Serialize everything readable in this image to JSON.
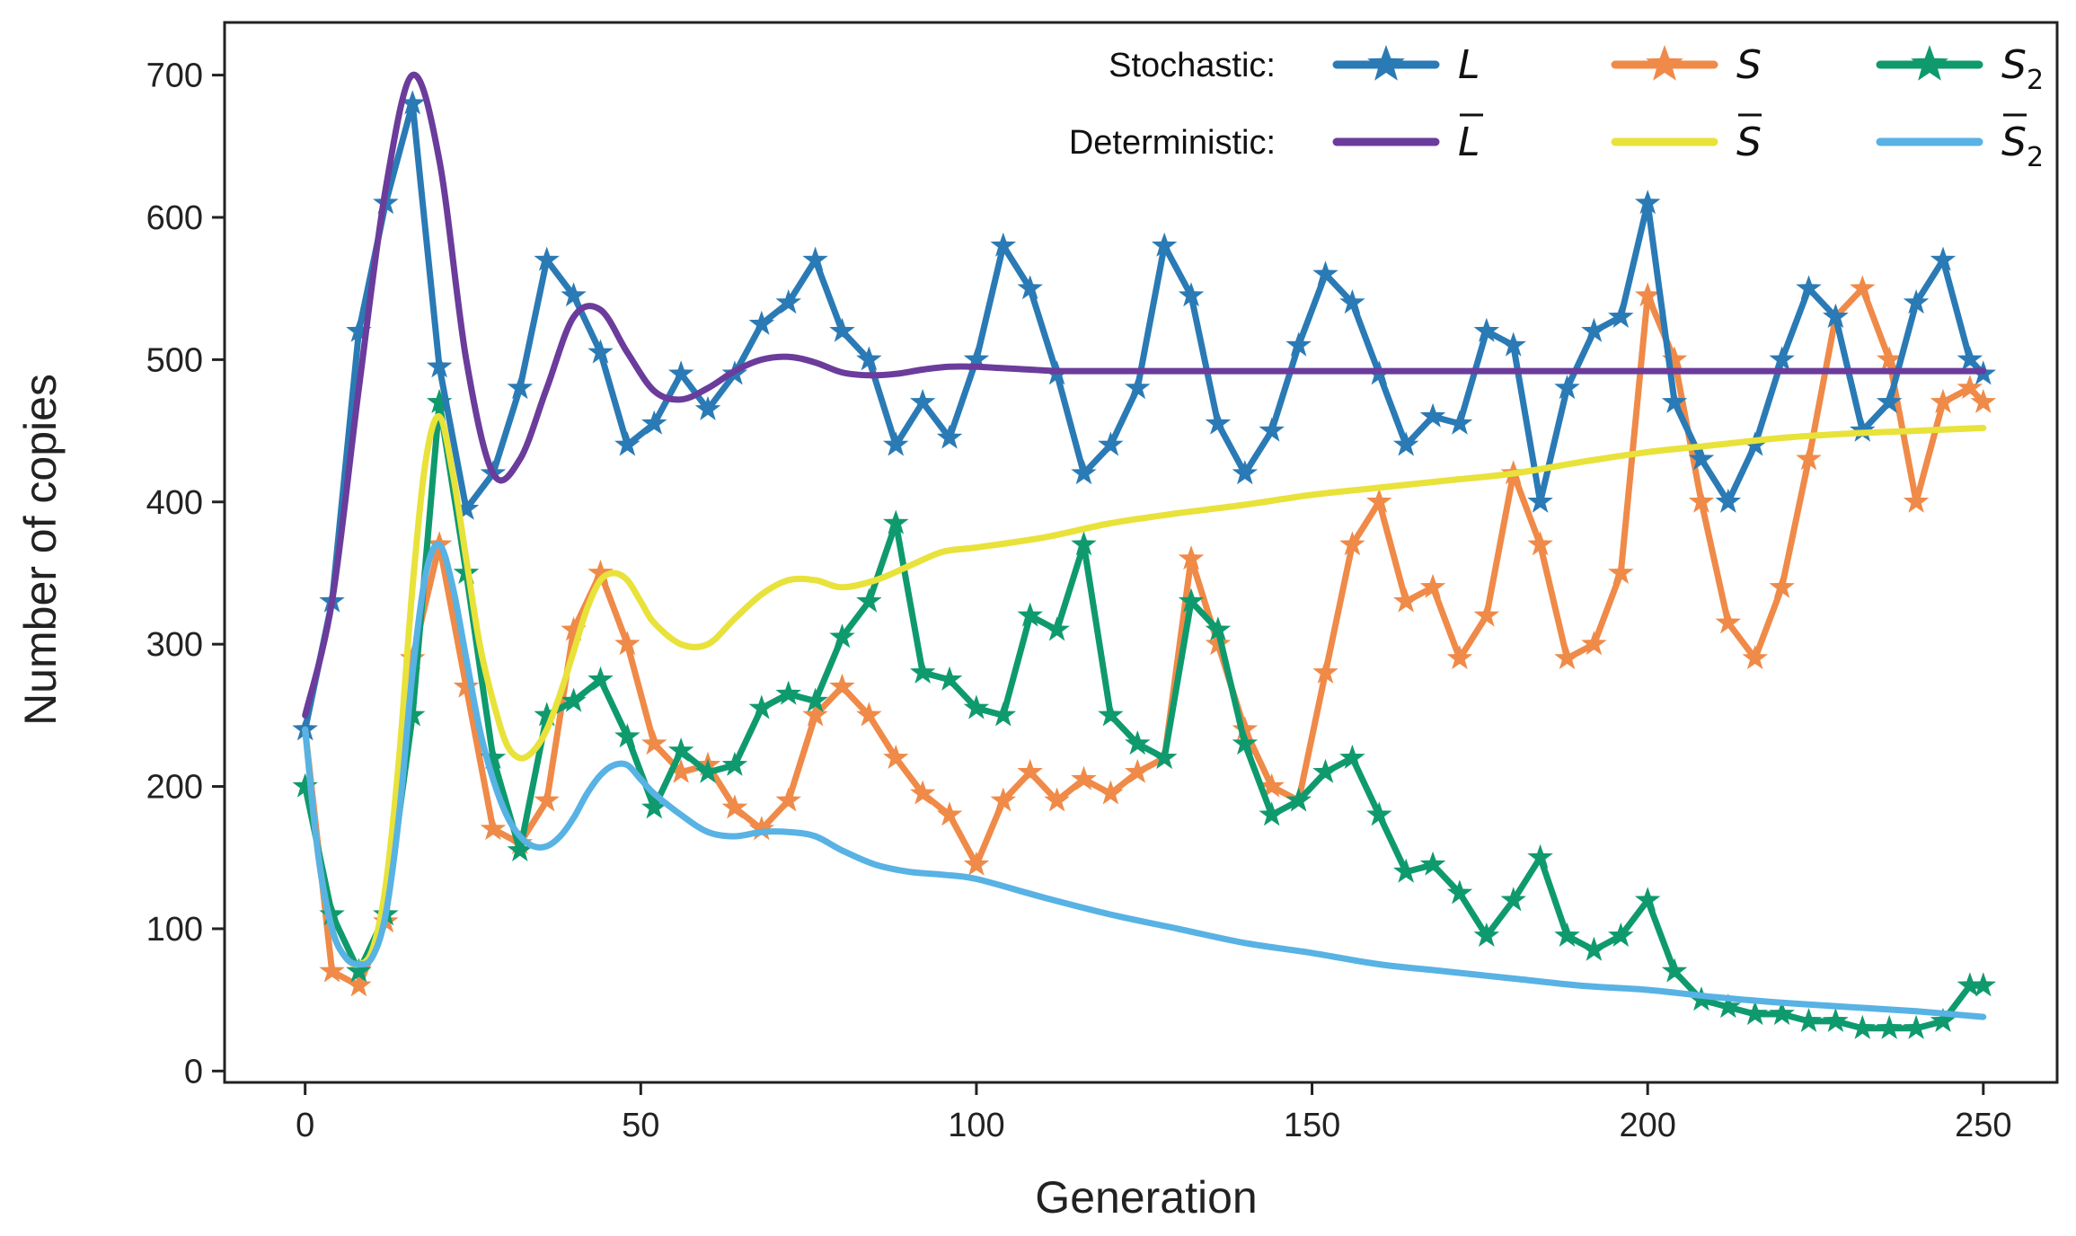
{
  "chart_data": {
    "type": "line",
    "title": "",
    "xlabel": "Generation",
    "ylabel": "Number of copies",
    "xlim": [
      -12,
      261
    ],
    "ylim": [
      -8,
      737
    ],
    "xticks": [
      0,
      50,
      100,
      150,
      200,
      250
    ],
    "yticks": [
      0,
      100,
      200,
      300,
      400,
      500,
      600,
      700
    ],
    "grid": false,
    "legend": {
      "placement": "top-right",
      "row_labels": [
        "Stochastic:",
        "Deterministic:"
      ],
      "entries": [
        {
          "series": "L",
          "label": "L",
          "sub": "",
          "overbar": false
        },
        {
          "series": "S",
          "label": "S",
          "sub": "",
          "overbar": false
        },
        {
          "series": "S2",
          "label": "S",
          "sub": "2",
          "overbar": false
        },
        {
          "series": "L_det",
          "label": "L",
          "sub": "",
          "overbar": true
        },
        {
          "series": "S_det",
          "label": "S",
          "sub": "",
          "overbar": true
        },
        {
          "series": "S2_det",
          "label": "S",
          "sub": "2",
          "overbar": true
        }
      ]
    },
    "series": [
      {
        "name": "L",
        "kind": "stochastic",
        "marker": "star",
        "color": "#2a7ab5",
        "x": [
          0,
          4,
          8,
          12,
          16,
          20,
          24,
          28,
          32,
          36,
          40,
          44,
          48,
          52,
          56,
          60,
          64,
          68,
          72,
          76,
          80,
          84,
          88,
          92,
          96,
          100,
          104,
          108,
          112,
          116,
          120,
          124,
          128,
          132,
          136,
          140,
          144,
          148,
          152,
          156,
          160,
          164,
          168,
          172,
          176,
          180,
          184,
          188,
          192,
          196,
          200,
          204,
          208,
          212,
          216,
          220,
          224,
          228,
          232,
          236,
          240,
          244,
          248,
          250
        ],
        "y": [
          240,
          330,
          520,
          610,
          680,
          495,
          395,
          420,
          480,
          570,
          545,
          505,
          440,
          455,
          490,
          465,
          490,
          525,
          540,
          570,
          520,
          500,
          440,
          470,
          445,
          500,
          580,
          550,
          490,
          420,
          440,
          480,
          580,
          545,
          455,
          420,
          450,
          510,
          560,
          540,
          490,
          440,
          460,
          455,
          520,
          510,
          400,
          480,
          520,
          530,
          610,
          470,
          430,
          400,
          440,
          500,
          550,
          530,
          450,
          470,
          540,
          570,
          500,
          490
        ]
      },
      {
        "name": "S",
        "kind": "stochastic",
        "marker": "star",
        "color": "#ef8a48",
        "x": [
          0,
          4,
          8,
          12,
          16,
          20,
          24,
          28,
          32,
          36,
          40,
          44,
          48,
          52,
          56,
          60,
          64,
          68,
          72,
          76,
          80,
          84,
          88,
          92,
          96,
          100,
          104,
          108,
          112,
          116,
          120,
          124,
          128,
          132,
          136,
          140,
          144,
          148,
          152,
          156,
          160,
          164,
          168,
          172,
          176,
          180,
          184,
          188,
          192,
          196,
          200,
          204,
          208,
          212,
          216,
          220,
          224,
          228,
          232,
          236,
          240,
          244,
          248,
          250
        ],
        "y": [
          240,
          70,
          60,
          105,
          290,
          370,
          270,
          170,
          160,
          190,
          310,
          350,
          300,
          230,
          210,
          215,
          185,
          170,
          190,
          250,
          270,
          250,
          220,
          195,
          180,
          145,
          190,
          210,
          190,
          205,
          195,
          210,
          220,
          360,
          300,
          240,
          200,
          190,
          280,
          370,
          400,
          330,
          340,
          290,
          320,
          420,
          370,
          290,
          300,
          350,
          545,
          500,
          400,
          315,
          290,
          340,
          430,
          530,
          550,
          500,
          400,
          470,
          480,
          470
        ]
      },
      {
        "name": "S2",
        "kind": "stochastic",
        "marker": "star",
        "color": "#0f9a6e",
        "x": [
          0,
          4,
          8,
          12,
          16,
          20,
          24,
          28,
          32,
          36,
          40,
          44,
          48,
          52,
          56,
          60,
          64,
          68,
          72,
          76,
          80,
          84,
          88,
          92,
          96,
          100,
          104,
          108,
          112,
          116,
          120,
          124,
          128,
          132,
          136,
          140,
          144,
          148,
          152,
          156,
          160,
          164,
          168,
          172,
          176,
          180,
          184,
          188,
          192,
          196,
          200,
          204,
          208,
          212,
          216,
          220,
          224,
          228,
          232,
          236,
          240,
          244,
          248,
          250
        ],
        "y": [
          200,
          110,
          70,
          110,
          250,
          470,
          350,
          220,
          155,
          250,
          260,
          275,
          235,
          185,
          225,
          210,
          215,
          255,
          265,
          260,
          305,
          330,
          385,
          280,
          275,
          255,
          250,
          320,
          310,
          370,
          250,
          230,
          220,
          330,
          310,
          230,
          180,
          190,
          210,
          220,
          180,
          140,
          145,
          125,
          95,
          120,
          150,
          95,
          85,
          95,
          120,
          70,
          50,
          45,
          40,
          40,
          35,
          35,
          30,
          30,
          30,
          35,
          60,
          60
        ]
      },
      {
        "name": "L_det",
        "kind": "deterministic",
        "marker": "none",
        "color": "#6b3c9b",
        "x": [
          0,
          4,
          8,
          12,
          16,
          20,
          24,
          28,
          32,
          36,
          40,
          44,
          48,
          52,
          56,
          60,
          64,
          68,
          72,
          76,
          80,
          84,
          88,
          92,
          96,
          100,
          104,
          108,
          112,
          116,
          120,
          130,
          140,
          150,
          160,
          170,
          180,
          190,
          200,
          210,
          220,
          230,
          240,
          250
        ],
        "y": [
          250,
          330,
          480,
          620,
          700,
          640,
          500,
          420,
          430,
          480,
          530,
          535,
          505,
          478,
          472,
          480,
          492,
          500,
          502,
          498,
          491,
          489,
          490,
          493,
          495,
          495,
          494,
          493,
          492,
          492,
          492,
          492,
          492,
          492,
          492,
          492,
          492,
          492,
          492,
          492,
          492,
          492,
          492,
          492
        ]
      },
      {
        "name": "S_det",
        "kind": "deterministic",
        "marker": "none",
        "color": "#e8e23a",
        "x": [
          0,
          2,
          4,
          6,
          8,
          10,
          12,
          14,
          16,
          18,
          20,
          22,
          24,
          26,
          28,
          30,
          32,
          34,
          36,
          38,
          40,
          42,
          44,
          46,
          48,
          50,
          52,
          56,
          60,
          64,
          68,
          72,
          76,
          80,
          85,
          90,
          95,
          100,
          110,
          120,
          130,
          140,
          150,
          160,
          170,
          180,
          190,
          200,
          210,
          220,
          230,
          240,
          250
        ],
        "y": [
          240,
          150,
          100,
          80,
          75,
          85,
          130,
          220,
          340,
          430,
          460,
          420,
          360,
          300,
          260,
          230,
          220,
          225,
          240,
          265,
          295,
          325,
          345,
          350,
          345,
          330,
          315,
          300,
          300,
          318,
          335,
          345,
          345,
          340,
          345,
          355,
          365,
          368,
          375,
          385,
          392,
          398,
          405,
          410,
          415,
          420,
          428,
          435,
          440,
          445,
          448,
          450,
          452
        ]
      },
      {
        "name": "S2_det",
        "kind": "deterministic",
        "marker": "none",
        "color": "#58b2e4",
        "x": [
          0,
          2,
          4,
          6,
          8,
          10,
          12,
          14,
          16,
          18,
          20,
          22,
          24,
          26,
          28,
          30,
          32,
          34,
          36,
          38,
          40,
          42,
          44,
          46,
          48,
          50,
          52,
          56,
          60,
          64,
          68,
          72,
          76,
          80,
          85,
          90,
          95,
          100,
          110,
          120,
          130,
          140,
          150,
          160,
          170,
          180,
          190,
          200,
          210,
          220,
          230,
          240,
          250
        ],
        "y": [
          240,
          150,
          100,
          80,
          75,
          80,
          110,
          180,
          280,
          350,
          370,
          340,
          290,
          240,
          205,
          180,
          165,
          158,
          158,
          165,
          178,
          195,
          208,
          215,
          215,
          205,
          195,
          180,
          168,
          165,
          168,
          168,
          165,
          155,
          145,
          140,
          138,
          135,
          122,
          110,
          100,
          90,
          83,
          75,
          70,
          65,
          60,
          57,
          52,
          48,
          45,
          42,
          38
        ]
      }
    ]
  }
}
